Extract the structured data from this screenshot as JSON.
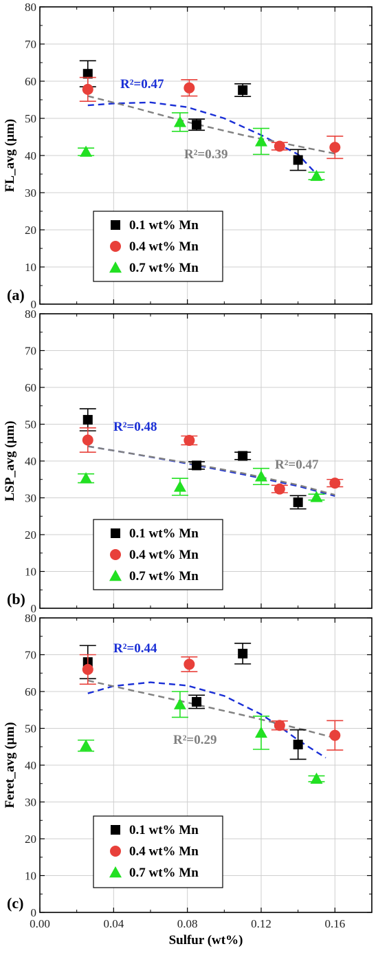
{
  "colors": {
    "mn01": "#000000",
    "mn04": "#e8403a",
    "mn07": "#22e022",
    "fit_blue": "#1a2fd6",
    "fit_gray": "#808080"
  },
  "x_axis": {
    "label": "Sulfur (wt%)",
    "range": [
      0.0,
      0.18
    ],
    "ticks": [
      "0.00",
      "0.04",
      "0.08",
      "0.12",
      "0.16"
    ]
  },
  "legend": {
    "entries": [
      "0.1 wt% Mn",
      "0.4 wt% Mn",
      "0.7 wt% Mn"
    ]
  },
  "chart_data": [
    {
      "type": "scatter",
      "panel_label": "(a)",
      "ylabel": "FL_avg (µm)",
      "xlabel": "",
      "ylim": [
        0,
        80
      ],
      "yticks": [
        "0",
        "10",
        "20",
        "30",
        "40",
        "50",
        "60",
        "70",
        "80"
      ],
      "grid": true,
      "legend_position": "bottom-left",
      "series": [
        {
          "name": "0.1 wt% Mn",
          "marker": "square",
          "x": [
            0.026,
            0.085,
            0.11,
            0.14
          ],
          "y": [
            62,
            48.3,
            57.6,
            38.8
          ],
          "err": [
            3.5,
            1.5,
            1.7,
            2.8
          ]
        },
        {
          "name": "0.4 wt% Mn",
          "marker": "circle",
          "x": [
            0.026,
            0.081,
            0.13,
            0.16
          ],
          "y": [
            57.8,
            58.2,
            42.5,
            42.2
          ],
          "err": [
            3.2,
            2.2,
            1.0,
            3.0
          ]
        },
        {
          "name": "0.7 wt% Mn",
          "marker": "triangle",
          "x": [
            0.025,
            0.076,
            0.12,
            0.15
          ],
          "y": [
            41,
            49,
            43.8,
            34.5
          ],
          "err": [
            1.0,
            2.5,
            3.5,
            1.0
          ]
        }
      ],
      "fits": [
        {
          "label": "R²=0.47",
          "color": "blue",
          "x": [
            0.026,
            0.04,
            0.06,
            0.08,
            0.1,
            0.12,
            0.14,
            0.15
          ],
          "y": [
            53.5,
            54,
            54.3,
            53,
            50,
            45.5,
            40.3,
            35
          ]
        },
        {
          "label": "R²=0.39",
          "color": "gray",
          "x": [
            0.026,
            0.05,
            0.08,
            0.11,
            0.14,
            0.16
          ],
          "y": [
            56,
            53,
            49,
            45.5,
            42.5,
            40.5
          ]
        }
      ]
    },
    {
      "type": "scatter",
      "panel_label": "(b)",
      "ylabel": "LSP_avg (µm)",
      "xlabel": "",
      "ylim": [
        0,
        80
      ],
      "yticks": [
        "0",
        "10",
        "20",
        "30",
        "40",
        "50",
        "60",
        "70",
        "80"
      ],
      "grid": true,
      "legend_position": "bottom-left",
      "series": [
        {
          "name": "0.1 wt% Mn",
          "marker": "square",
          "x": [
            0.026,
            0.085,
            0.11,
            0.14
          ],
          "y": [
            51.2,
            38.8,
            41.4,
            28.8
          ],
          "err": [
            3.0,
            1.0,
            1.0,
            1.8
          ]
        },
        {
          "name": "0.4 wt% Mn",
          "marker": "circle",
          "x": [
            0.026,
            0.081,
            0.13,
            0.16
          ],
          "y": [
            45.7,
            45.6,
            32.4,
            34.0
          ],
          "err": [
            3.3,
            1.2,
            1.0,
            1.0
          ]
        },
        {
          "name": "0.7 wt% Mn",
          "marker": "triangle",
          "x": [
            0.025,
            0.076,
            0.12,
            0.15
          ],
          "y": [
            35.3,
            33.0,
            35.8,
            30.2
          ],
          "err": [
            1.2,
            2.3,
            2.2,
            0.8
          ]
        }
      ],
      "fits": [
        {
          "label": "R²=0.48",
          "color": "blue",
          "x": [
            0.026,
            0.05,
            0.08,
            0.11,
            0.14,
            0.16
          ],
          "y": [
            44,
            42,
            39.3,
            36.4,
            33.2,
            30.5
          ]
        },
        {
          "label": "R²=0.47",
          "color": "gray",
          "x": [
            0.026,
            0.05,
            0.08,
            0.11,
            0.14,
            0.16
          ],
          "y": [
            44,
            42,
            39.5,
            36.7,
            33.5,
            30.8
          ]
        }
      ]
    },
    {
      "type": "scatter",
      "panel_label": "(c)",
      "ylabel": "Feret_avg (µm)",
      "xlabel": "Sulfur (wt%)",
      "ylim": [
        0,
        80
      ],
      "yticks": [
        "0",
        "10",
        "20",
        "30",
        "40",
        "50",
        "60",
        "70",
        "80"
      ],
      "xticks": [
        "0.00",
        "0.04",
        "0.08",
        "0.12",
        "0.16"
      ],
      "grid": true,
      "legend_position": "bottom-left",
      "series": [
        {
          "name": "0.1 wt% Mn",
          "marker": "square",
          "x": [
            0.026,
            0.085,
            0.11,
            0.14
          ],
          "y": [
            68,
            57.2,
            70.3,
            45.6
          ],
          "err": [
            4.5,
            1.8,
            2.8,
            4.0
          ]
        },
        {
          "name": "0.4 wt% Mn",
          "marker": "circle",
          "x": [
            0.026,
            0.081,
            0.13,
            0.16
          ],
          "y": [
            66,
            67.4,
            50.8,
            48.1
          ],
          "err": [
            4.0,
            2.0,
            1.2,
            4.0
          ]
        },
        {
          "name": "0.7 wt% Mn",
          "marker": "triangle",
          "x": [
            0.025,
            0.076,
            0.12,
            0.15
          ],
          "y": [
            45.3,
            56.5,
            48.8,
            36.3
          ],
          "err": [
            1.5,
            3.5,
            4.5,
            0.8
          ]
        }
      ],
      "fits": [
        {
          "label": "R²=0.44",
          "color": "blue",
          "x": [
            0.026,
            0.04,
            0.06,
            0.08,
            0.1,
            0.12,
            0.13,
            0.14,
            0.155
          ],
          "y": [
            59.5,
            61.5,
            62.5,
            61.6,
            58.8,
            53.8,
            50.5,
            46.8,
            42
          ]
        },
        {
          "label": "R²=0.29",
          "color": "gray",
          "x": [
            0.026,
            0.05,
            0.08,
            0.11,
            0.14,
            0.16
          ],
          "y": [
            63,
            60.3,
            57,
            53.6,
            50,
            47.4
          ]
        }
      ]
    }
  ]
}
